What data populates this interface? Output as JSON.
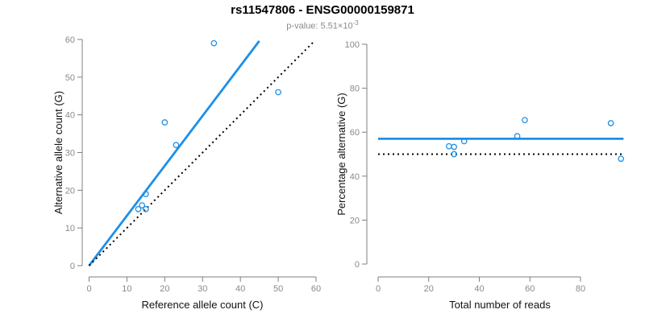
{
  "header": {
    "title": "rs11547806 - ENSG00000159871",
    "p_value_label": "p-value: 5.51×10",
    "p_value_exponent": "-3"
  },
  "colors": {
    "accent_blue": "#1E8FE8",
    "axis_gray": "#7f7f7f",
    "tick_label_gray": "#8a8a8a",
    "axis_title_color": "#111111"
  },
  "chart_data": [
    {
      "name": "allele-counts-plot",
      "type": "scatter",
      "xlabel": "Reference allele count (C)",
      "ylabel": "Alternative allele count (G)",
      "xlim": [
        0,
        60
      ],
      "ylim": [
        0,
        60
      ],
      "xticks": [
        0,
        10,
        20,
        30,
        40,
        50,
        60
      ],
      "yticks": [
        0,
        10,
        20,
        30,
        40,
        50,
        60
      ],
      "grid": false,
      "legend": "none",
      "points": [
        [
          13,
          15
        ],
        [
          14,
          16
        ],
        [
          15,
          15
        ],
        [
          15,
          19
        ],
        [
          20,
          38
        ],
        [
          23,
          32
        ],
        [
          33,
          59
        ],
        [
          50,
          46
        ]
      ],
      "lines": [
        {
          "name": "fitted-line",
          "style": "solid",
          "color": "#1E8FE8",
          "width": 2.8,
          "x1": 0,
          "y1": 0,
          "x2": 45,
          "y2": 59.6
        },
        {
          "name": "identity-line",
          "style": "dotted",
          "color": "#000000",
          "width": 2,
          "x1": 0,
          "y1": 0,
          "x2": 59.5,
          "y2": 59.5
        }
      ]
    },
    {
      "name": "percentage-vs-reads-plot",
      "type": "scatter",
      "xlabel": "Total number of reads",
      "ylabel": "Percentage alternative (G)",
      "xlim": [
        0,
        97
      ],
      "ylim": [
        0,
        100
      ],
      "xticks": [
        0,
        20,
        40,
        60,
        80
      ],
      "yticks": [
        0,
        20,
        40,
        60,
        80,
        100
      ],
      "grid": false,
      "legend": "none",
      "points": [
        [
          28,
          53.6
        ],
        [
          30,
          53.3
        ],
        [
          30,
          50.0
        ],
        [
          34,
          55.9
        ],
        [
          55,
          58.2
        ],
        [
          58,
          65.5
        ],
        [
          92,
          64.1
        ],
        [
          96,
          47.9
        ]
      ],
      "lines": [
        {
          "name": "mean-percentage-line",
          "style": "solid",
          "color": "#1E8FE8",
          "width": 2.8,
          "x1": 0,
          "y1": 57,
          "x2": 97,
          "y2": 57
        },
        {
          "name": "expected-50-percent-line",
          "style": "dotted",
          "color": "#000000",
          "width": 2,
          "x1": 0,
          "y1": 50,
          "x2": 97,
          "y2": 50
        }
      ]
    }
  ]
}
